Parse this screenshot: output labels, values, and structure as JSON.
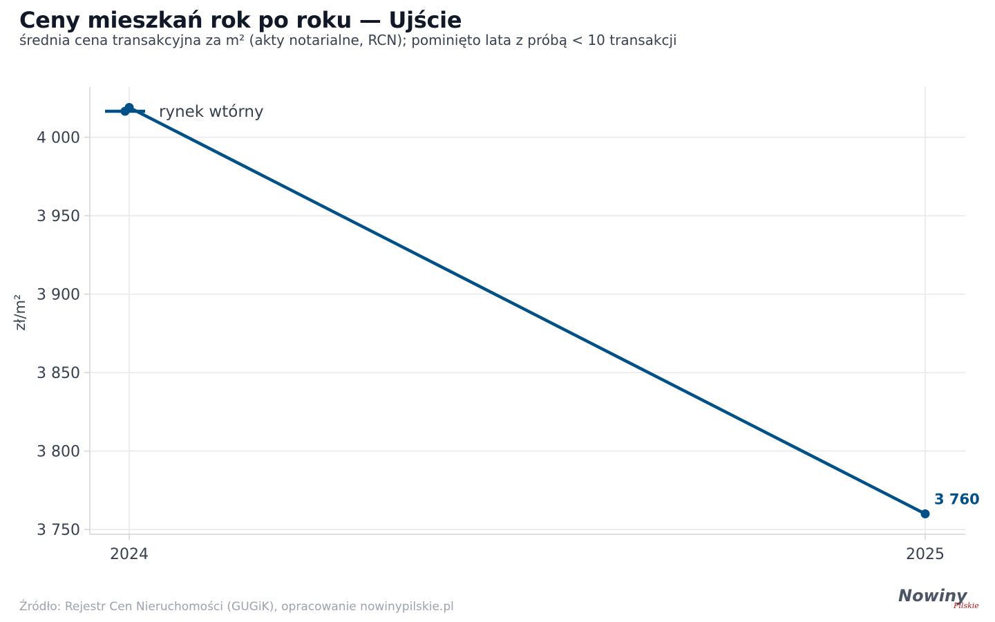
{
  "header": {
    "title": "Ceny mieszkań rok po roku — Ujście",
    "subtitle": "średnia cena transakcyjna za m² (akty notarialne, RCN); pominięto lata z próbą < 10 transakcji"
  },
  "footer": {
    "source": "Źródło: Rejestr Cen Nieruchomości (GUGiK), opracowanie nowinypilskie.pl",
    "logo_main": "Nowiny",
    "logo_sub": "Pilskie"
  },
  "chart_data": {
    "type": "line",
    "x": [
      "2024",
      "2025"
    ],
    "series": [
      {
        "name": "rynek wtórny",
        "values": [
          4019,
          3760
        ],
        "color": "#005187"
      }
    ],
    "ylabel": "zł/m²",
    "yticks": [
      "3 750",
      "3 800",
      "3 850",
      "3 900",
      "3 950",
      "4 000"
    ],
    "ytick_values": [
      3750,
      3800,
      3850,
      3900,
      3950,
      4000
    ],
    "ylim": [
      3747,
      4032
    ],
    "end_label": "3 760",
    "grid": true,
    "legend_position": "top-left"
  }
}
